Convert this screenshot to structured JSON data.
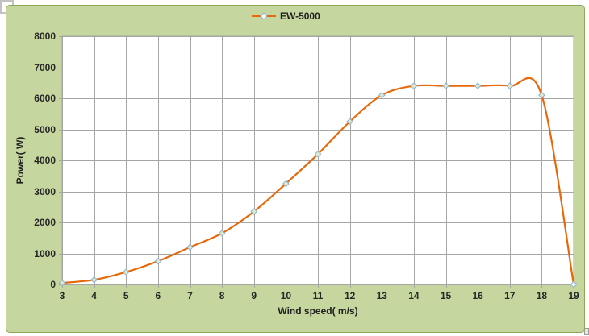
{
  "chart_data": {
    "type": "line",
    "title": "",
    "xlabel": "Wind speed( m/s)",
    "ylabel": "Power( W)",
    "series": [
      {
        "name": "EW-5000",
        "x": [
          3,
          4,
          5,
          6,
          7,
          8,
          9,
          10,
          11,
          12,
          13,
          14,
          15,
          16,
          17,
          18,
          19
        ],
        "y": [
          50,
          150,
          400,
          750,
          1200,
          1650,
          2350,
          3250,
          4200,
          5250,
          6100,
          6400,
          6400,
          6400,
          6400,
          6100,
          0
        ]
      }
    ],
    "x_ticks": [
      3,
      4,
      5,
      6,
      7,
      8,
      9,
      10,
      11,
      12,
      13,
      14,
      15,
      16,
      17,
      18,
      19
    ],
    "y_ticks": [
      0,
      1000,
      2000,
      3000,
      4000,
      5000,
      6000,
      7000,
      8000
    ],
    "xlim": [
      3,
      19
    ],
    "ylim": [
      0,
      8000
    ],
    "grid": true,
    "smooth": true,
    "legend_position": "top-center",
    "colors": {
      "line": "#e6680a",
      "marker_fill": "#dde9c9",
      "marker_fill_last": "#ffffff",
      "marker_stroke": "#8fb2d5",
      "chart_background": "#c6d69f",
      "chart_border": "#8fa757",
      "plot_background": "#ffffff",
      "gridline": "#a6a6a6",
      "text": "#262626"
    }
  }
}
